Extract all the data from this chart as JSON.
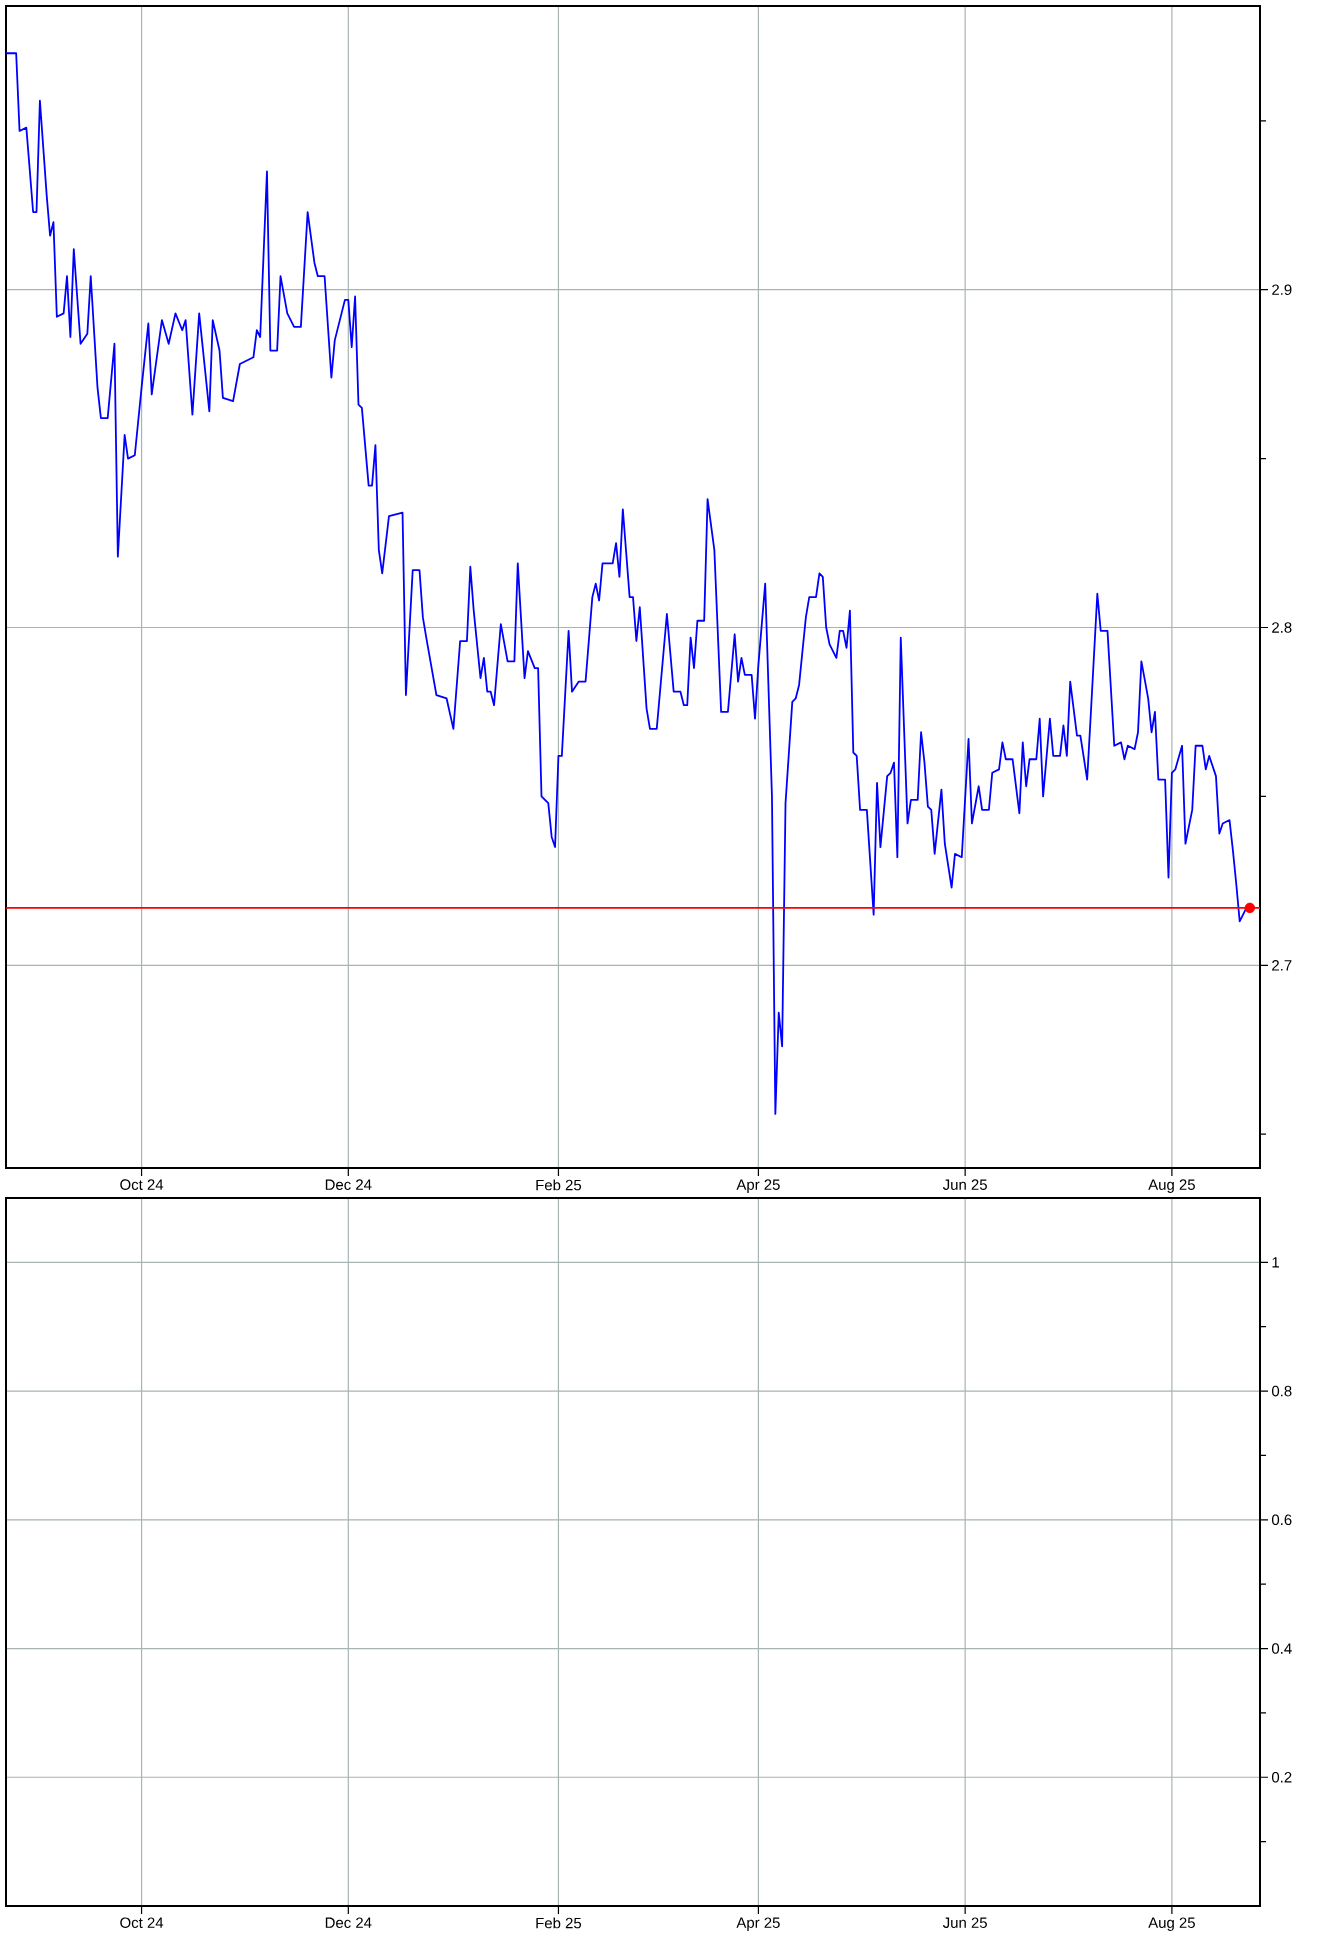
{
  "chart_data": [
    {
      "type": "line",
      "series": [
        {
          "color": "#0000ff",
          "x": [
            "2024-08-22",
            "2024-08-25",
            "2024-08-26",
            "2024-08-28",
            "2024-08-30",
            "2024-08-31",
            "2024-09-01",
            "2024-09-03",
            "2024-09-04",
            "2024-09-05",
            "2024-09-06",
            "2024-09-08",
            "2024-09-09",
            "2024-09-10",
            "2024-09-11",
            "2024-09-13",
            "2024-09-15",
            "2024-09-16",
            "2024-09-18",
            "2024-09-19",
            "2024-09-21",
            "2024-09-23",
            "2024-09-24",
            "2024-09-26",
            "2024-09-27",
            "2024-09-29",
            "2024-10-01",
            "2024-10-03",
            "2024-10-04",
            "2024-10-07",
            "2024-10-09",
            "2024-10-11",
            "2024-10-13",
            "2024-10-14",
            "2024-10-16",
            "2024-10-18",
            "2024-10-21",
            "2024-10-22",
            "2024-10-24",
            "2024-10-25",
            "2024-10-28",
            "2024-10-30",
            "2024-11-03",
            "2024-11-04",
            "2024-11-05",
            "2024-11-07",
            "2024-11-08",
            "2024-11-10",
            "2024-11-11",
            "2024-11-13",
            "2024-11-15",
            "2024-11-17",
            "2024-11-19",
            "2024-11-21",
            "2024-11-22",
            "2024-11-24",
            "2024-11-26",
            "2024-11-27",
            "2024-11-30",
            "2024-12-01",
            "2024-12-02",
            "2024-12-03",
            "2024-12-04",
            "2024-12-05",
            "2024-12-07",
            "2024-12-08",
            "2024-12-09",
            "2024-12-10",
            "2024-12-11",
            "2024-12-13",
            "2024-12-17",
            "2024-12-18",
            "2024-12-20",
            "2024-12-22",
            "2024-12-23",
            "2024-12-24",
            "2024-12-27",
            "2024-12-30",
            "2025-01-01",
            "2025-01-03",
            "2025-01-05",
            "2025-01-06",
            "2025-01-07",
            "2025-01-09",
            "2025-01-10",
            "2025-01-11",
            "2025-01-12",
            "2025-01-13",
            "2025-01-15",
            "2025-01-17",
            "2025-01-19",
            "2025-01-20",
            "2025-01-22",
            "2025-01-23",
            "2025-01-25",
            "2025-01-26",
            "2025-01-27",
            "2025-01-29",
            "2025-01-30",
            "2025-01-31",
            "2025-02-01",
            "2025-02-02",
            "2025-02-04",
            "2025-02-05",
            "2025-02-07",
            "2025-02-09",
            "2025-02-11",
            "2025-02-12",
            "2025-02-13",
            "2025-02-14",
            "2025-02-17",
            "2025-02-18",
            "2025-02-19",
            "2025-02-20",
            "2025-02-22",
            "2025-02-23",
            "2025-02-24",
            "2025-02-25",
            "2025-02-27",
            "2025-02-28",
            "2025-03-02",
            "2025-03-05",
            "2025-03-07",
            "2025-03-09",
            "2025-03-10",
            "2025-03-11",
            "2025-03-12",
            "2025-03-13",
            "2025-03-14",
            "2025-03-16",
            "2025-03-17",
            "2025-03-19",
            "2025-03-21",
            "2025-03-23",
            "2025-03-25",
            "2025-03-26",
            "2025-03-27",
            "2025-03-28",
            "2025-03-30",
            "2025-03-31",
            "2025-04-01",
            "2025-04-03",
            "2025-04-05",
            "2025-04-06",
            "2025-04-07",
            "2025-04-08",
            "2025-04-09",
            "2025-04-11",
            "2025-04-12",
            "2025-04-13",
            "2025-04-15",
            "2025-04-16",
            "2025-04-18",
            "2025-04-19",
            "2025-04-20",
            "2025-04-21",
            "2025-04-22",
            "2025-04-24",
            "2025-04-25",
            "2025-04-26",
            "2025-04-27",
            "2025-04-28",
            "2025-04-29",
            "2025-04-30",
            "2025-05-01",
            "2025-05-03",
            "2025-05-05",
            "2025-05-06",
            "2025-05-07",
            "2025-05-09",
            "2025-05-10",
            "2025-05-11",
            "2025-05-12",
            "2025-05-13",
            "2025-05-15",
            "2025-05-16",
            "2025-05-18",
            "2025-05-19",
            "2025-05-20",
            "2025-05-21",
            "2025-05-22",
            "2025-05-23",
            "2025-05-25",
            "2025-05-26",
            "2025-05-28",
            "2025-05-29",
            "2025-05-31",
            "2025-06-02",
            "2025-06-03",
            "2025-06-05",
            "2025-06-06",
            "2025-06-08",
            "2025-06-09",
            "2025-06-11",
            "2025-06-12",
            "2025-06-13",
            "2025-06-15",
            "2025-06-17",
            "2025-06-18",
            "2025-06-19",
            "2025-06-20",
            "2025-06-22",
            "2025-06-23",
            "2025-06-24",
            "2025-06-26",
            "2025-06-27",
            "2025-06-29",
            "2025-06-30",
            "2025-07-01",
            "2025-07-02",
            "2025-07-04",
            "2025-07-05",
            "2025-07-07",
            "2025-07-08",
            "2025-07-10",
            "2025-07-11",
            "2025-07-13",
            "2025-07-15",
            "2025-07-17",
            "2025-07-18",
            "2025-07-19",
            "2025-07-21",
            "2025-07-22",
            "2025-07-23",
            "2025-07-25",
            "2025-07-26",
            "2025-07-27",
            "2025-07-28",
            "2025-07-30",
            "2025-07-31",
            "2025-08-01",
            "2025-08-02",
            "2025-08-04",
            "2025-08-05",
            "2025-08-07",
            "2025-08-08",
            "2025-08-10",
            "2025-08-11",
            "2025-08-12",
            "2025-08-14",
            "2025-08-15",
            "2025-08-16",
            "2025-08-18",
            "2025-08-19",
            "2025-08-20",
            "2025-08-21",
            "2025-08-23"
          ],
          "values": [
            2.97,
            2.97,
            2.947,
            2.948,
            2.923,
            2.923,
            2.956,
            2.928,
            2.916,
            2.92,
            2.892,
            2.893,
            2.904,
            2.886,
            2.912,
            2.884,
            2.887,
            2.904,
            2.871,
            2.862,
            2.862,
            2.884,
            2.821,
            2.857,
            2.85,
            2.851,
            2.871,
            2.89,
            2.869,
            2.891,
            2.884,
            2.893,
            2.888,
            2.891,
            2.863,
            2.893,
            2.864,
            2.891,
            2.882,
            2.868,
            2.867,
            2.878,
            2.88,
            2.888,
            2.886,
            2.935,
            2.882,
            2.882,
            2.904,
            2.893,
            2.889,
            2.889,
            2.923,
            2.908,
            2.904,
            2.904,
            2.874,
            2.885,
            2.897,
            2.897,
            2.883,
            2.898,
            2.866,
            2.865,
            2.842,
            2.842,
            2.854,
            2.823,
            2.816,
            2.833,
            2.834,
            2.78,
            2.817,
            2.817,
            2.803,
            2.797,
            2.78,
            2.779,
            2.77,
            2.796,
            2.796,
            2.818,
            2.805,
            2.785,
            2.791,
            2.781,
            2.781,
            2.777,
            2.801,
            2.79,
            2.79,
            2.819,
            2.785,
            2.793,
            2.788,
            2.788,
            2.75,
            2.748,
            2.738,
            2.735,
            2.762,
            2.762,
            2.799,
            2.781,
            2.784,
            2.784,
            2.809,
            2.813,
            2.808,
            2.819,
            2.819,
            2.825,
            2.815,
            2.835,
            2.809,
            2.809,
            2.796,
            2.806,
            2.776,
            2.77,
            2.77,
            2.804,
            2.781,
            2.781,
            2.777,
            2.777,
            2.797,
            2.788,
            2.802,
            2.802,
            2.838,
            2.823,
            2.775,
            2.775,
            2.798,
            2.784,
            2.791,
            2.786,
            2.786,
            2.773,
            2.789,
            2.813,
            2.75,
            2.656,
            2.686,
            2.676,
            2.748,
            2.778,
            2.779,
            2.783,
            2.803,
            2.809,
            2.809,
            2.816,
            2.815,
            2.8,
            2.795,
            2.791,
            2.799,
            2.799,
            2.794,
            2.805,
            2.763,
            2.762,
            2.746,
            2.746,
            2.715,
            2.754,
            2.735,
            2.756,
            2.757,
            2.76,
            2.732,
            2.797,
            2.742,
            2.749,
            2.749,
            2.769,
            2.76,
            2.747,
            2.746,
            2.733,
            2.752,
            2.736,
            2.723,
            2.733,
            2.732,
            2.767,
            2.742,
            2.753,
            2.746,
            2.746,
            2.757,
            2.758,
            2.766,
            2.761,
            2.761,
            2.745,
            2.766,
            2.753,
            2.761,
            2.761,
            2.773,
            2.75,
            2.773,
            2.762,
            2.762,
            2.771,
            2.762,
            2.784,
            2.768,
            2.768,
            2.755,
            2.773,
            2.81,
            2.799,
            2.799,
            2.765,
            2.766,
            2.761,
            2.765,
            2.764,
            2.769,
            2.79,
            2.779,
            2.769,
            2.775,
            2.755,
            2.755,
            2.726,
            2.757,
            2.758,
            2.765,
            2.736,
            2.746,
            2.765,
            2.765,
            2.758,
            2.762,
            2.756,
            2.739,
            2.742,
            2.743,
            2.734,
            2.724,
            2.713,
            2.717
          ]
        },
        {
          "type": "scatter",
          "color": "#ff0000",
          "x": [
            "2025-08-24"
          ],
          "values": [
            2.717
          ]
        }
      ],
      "ref_lines": [
        {
          "axis": "y",
          "value": 2.717,
          "color": "#ff0000"
        }
      ],
      "xlim": [
        "2024-08-22",
        "2025-08-27"
      ],
      "xticks": [
        {
          "value": "2024-10-01",
          "label": "Oct 24"
        },
        {
          "value": "2024-12-01",
          "label": "Dec 24"
        },
        {
          "value": "2025-02-01",
          "label": "Feb 25"
        },
        {
          "value": "2025-04-01",
          "label": "Apr 25"
        },
        {
          "value": "2025-06-01",
          "label": "Jun 25"
        },
        {
          "value": "2025-08-01",
          "label": "Aug 25"
        }
      ],
      "ylim": [
        2.64,
        2.984
      ],
      "yticks": [
        {
          "value": 2.65,
          "label": null
        },
        2.7,
        {
          "value": 2.75,
          "label": null
        },
        2.8,
        {
          "value": 2.85,
          "label": null
        },
        2.9,
        {
          "value": 2.95,
          "label": null
        }
      ],
      "grid": true
    },
    {
      "type": "bar",
      "xlim": [
        "2024-08-22",
        "2025-08-27"
      ],
      "xticks": [
        {
          "value": "2024-10-01",
          "label": "Oct 24"
        },
        {
          "value": "2024-12-01",
          "label": "Dec 24"
        },
        {
          "value": "2025-02-01",
          "label": "Feb 25"
        },
        {
          "value": "2025-04-01",
          "label": "Apr 25"
        },
        {
          "value": "2025-06-01",
          "label": "Jun 25"
        },
        {
          "value": "2025-08-01",
          "label": "Aug 25"
        }
      ],
      "ylim": [
        0,
        1.1
      ],
      "yticks": [
        {
          "value": 0.1,
          "label": null
        },
        0.2,
        {
          "value": 0.3,
          "label": null
        },
        0.4,
        {
          "value": 0.5,
          "label": null
        },
        0.6,
        {
          "value": 0.7,
          "label": null
        },
        0.8,
        {
          "value": 0.9,
          "label": null
        },
        1
      ],
      "grid": true
    }
  ]
}
